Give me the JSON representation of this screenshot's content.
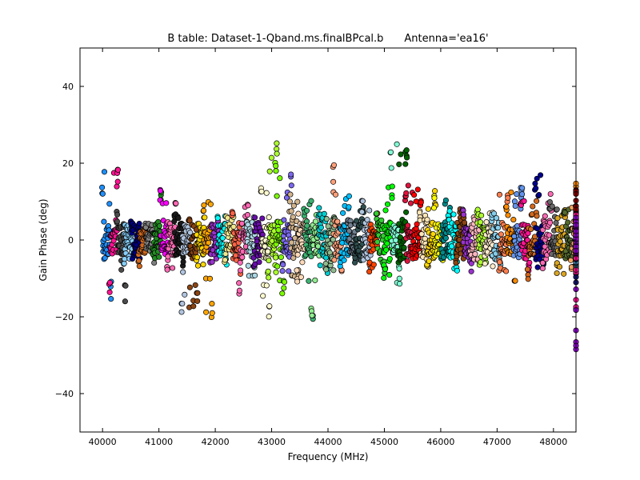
{
  "chart_data": {
    "type": "scatter",
    "title": "B table: Dataset-1-Qband.ms.finalBPcal.b",
    "subtitle": "Antenna='ea16'",
    "xlabel": "Frequency (MHz)",
    "ylabel": "Gain Phase (deg)",
    "xlim": [
      39600,
      48400
    ],
    "ylim": [
      -50,
      50
    ],
    "xticks": [
      40000,
      41000,
      42000,
      43000,
      44000,
      45000,
      46000,
      47000,
      48000
    ],
    "yticks": [
      -40,
      -20,
      0,
      20,
      40
    ],
    "ytick_labels": [
      "−40",
      "−20",
      "0",
      "20",
      "40"
    ],
    "grid": false,
    "legend": "none",
    "marker": "circle",
    "series_start": 40000,
    "series_step": 128,
    "baseline_amplitude": 4.5,
    "spectral_windows": [
      {
        "color": "#1e90ff",
        "ymin": -15.5,
        "ymax": 19
      },
      {
        "color": "#ff1493",
        "ymin": -14,
        "ymax": 19
      },
      {
        "color": "#4b4b4b",
        "ymin": -16,
        "ymax": 8
      },
      {
        "color": "#87cefa",
        "ymin": -7,
        "ymax": 4
      },
      {
        "color": "#000080",
        "ymin": -5,
        "ymax": 5
      },
      {
        "color": "#d2691e",
        "ymin": -7,
        "ymax": 5
      },
      {
        "color": "#808080",
        "ymin": -6,
        "ymax": 5
      },
      {
        "color": "#228b22",
        "ymin": -6,
        "ymax": 13
      },
      {
        "color": "#ff00ff",
        "ymin": -5,
        "ymax": 13.5
      },
      {
        "color": "#ff69b4",
        "ymin": -8,
        "ymax": 11
      },
      {
        "color": "#1a1a1a",
        "ymin": -7,
        "ymax": 7
      },
      {
        "color": "#b0c4de",
        "ymin": -20.5,
        "ymax": 4
      },
      {
        "color": "#8b4513",
        "ymin": -18,
        "ymax": 6
      },
      {
        "color": "#ffd700",
        "ymin": -8,
        "ymax": 6
      },
      {
        "color": "#ffa500",
        "ymin": -21,
        "ymax": 10.5
      },
      {
        "color": "#9932cc",
        "ymin": -6,
        "ymax": 5
      },
      {
        "color": "#00ffff",
        "ymin": -7,
        "ymax": 7
      },
      {
        "color": "#f0e68c",
        "ymin": -9,
        "ymax": 8
      },
      {
        "color": "#ff6347",
        "ymin": -9,
        "ymax": 9
      },
      {
        "color": "#ff69b4",
        "ymin": -14,
        "ymax": 9.5
      },
      {
        "color": "#add8e6",
        "ymin": -10,
        "ymax": 6
      },
      {
        "color": "#6a0dad",
        "ymin": -8,
        "ymax": 6
      },
      {
        "color": "#fffacd",
        "ymin": -20.5,
        "ymax": 14
      },
      {
        "color": "#adff2f",
        "ymin": -12,
        "ymax": 25.5
      },
      {
        "color": "#7cfc00",
        "ymin": -14,
        "ymax": 22
      },
      {
        "color": "#7b68ee",
        "ymin": -9,
        "ymax": 18
      },
      {
        "color": "#d2b48c",
        "ymin": -12,
        "ymax": 12
      },
      {
        "color": "#ffdab9",
        "ymin": -11,
        "ymax": 8
      },
      {
        "color": "#3cb371",
        "ymin": -21,
        "ymax": 11
      },
      {
        "color": "#90ee90",
        "ymin": -20,
        "ymax": 7
      },
      {
        "color": "#00ced1",
        "ymin": -9,
        "ymax": 10
      },
      {
        "color": "#8fbc8f",
        "ymin": -9,
        "ymax": 8
      },
      {
        "color": "#ffa07a",
        "ymin": -9,
        "ymax": 20
      },
      {
        "color": "#00bfff",
        "ymin": -7,
        "ymax": 13
      },
      {
        "color": "#708090",
        "ymin": -6,
        "ymax": 7
      },
      {
        "color": "#2f4f4f",
        "ymin": -6,
        "ymax": 9
      },
      {
        "color": "#b0c4de",
        "ymin": -8,
        "ymax": 11
      },
      {
        "color": "#ff4500",
        "ymin": -9,
        "ymax": 7
      },
      {
        "color": "#32cd32",
        "ymin": -10,
        "ymax": 9
      },
      {
        "color": "#00ff00",
        "ymin": -10,
        "ymax": 15
      },
      {
        "color": "#7fffd4",
        "ymin": -12,
        "ymax": 26
      },
      {
        "color": "#006400",
        "ymin": -6,
        "ymax": 24
      },
      {
        "color": "#dc143c",
        "ymin": -6,
        "ymax": 15
      },
      {
        "color": "#ff0000",
        "ymin": -6,
        "ymax": 14
      },
      {
        "color": "#ffe4b5",
        "ymin": -7,
        "ymax": 8
      },
      {
        "color": "#ffd700",
        "ymin": -7,
        "ymax": 13
      },
      {
        "color": "#ffff00",
        "ymin": -6,
        "ymax": 12
      },
      {
        "color": "#008b8b",
        "ymin": -5,
        "ymax": 11
      },
      {
        "color": "#00ffff",
        "ymin": -8,
        "ymax": 9
      },
      {
        "color": "#8b4513",
        "ymin": -7,
        "ymax": 9
      },
      {
        "color": "#9932cc",
        "ymin": -9,
        "ymax": 8
      },
      {
        "color": "#ffb6c1",
        "ymin": -6,
        "ymax": 7
      },
      {
        "color": "#adff2f",
        "ymin": -7,
        "ymax": 8
      },
      {
        "color": "#ffebcd",
        "ymin": -7,
        "ymax": 8
      },
      {
        "color": "#87ceeb",
        "ymin": -8,
        "ymax": 7
      },
      {
        "color": "#ff7f50",
        "ymin": -9,
        "ymax": 14
      },
      {
        "color": "#ff8c00",
        "ymin": -13,
        "ymax": 13
      },
      {
        "color": "#6495ed",
        "ymin": -6,
        "ymax": 14
      },
      {
        "color": "#ff1493",
        "ymin": -10,
        "ymax": 12
      },
      {
        "color": "#d2691e",
        "ymin": -11,
        "ymax": 11
      },
      {
        "color": "#00008b",
        "ymin": -8,
        "ymax": 18
      },
      {
        "color": "#ff69b4",
        "ymin": -9,
        "ymax": 12
      },
      {
        "color": "#696969",
        "ymin": -8,
        "ymax": 10
      },
      {
        "color": "#daa520",
        "ymin": -9,
        "ymax": 8
      },
      {
        "color": "#556b2f",
        "ymin": -7,
        "ymax": 8
      },
      {
        "color": "#f4a460",
        "ymin": -8,
        "ymax": 10
      },
      {
        "color": "#bdb76b",
        "ymin": -7,
        "ymax": 8
      },
      {
        "color": "#ff8c00",
        "ymin": -8,
        "ymax": 15
      },
      {
        "color": "#dda0dd",
        "ymin": -7,
        "ymax": 8
      },
      {
        "color": "#f0e68c",
        "ymin": -8,
        "ymax": 9
      },
      {
        "color": "#8b0000",
        "ymin": -7,
        "ymax": 14
      },
      {
        "color": "#483d8b",
        "ymin": -8,
        "ymax": 6
      },
      {
        "color": "#c71585",
        "ymin": -8,
        "ymax": 6
      },
      {
        "color": "#a0522d",
        "ymin": -9,
        "ymax": 7
      },
      {
        "color": "#2e8b57",
        "ymin": -8,
        "ymax": 6
      },
      {
        "color": "#4682b4",
        "ymin": -8,
        "ymax": 7
      },
      {
        "color": "#191970",
        "ymin": -12,
        "ymax": 7
      },
      {
        "color": "#ff1493",
        "ymin": -18,
        "ymax": 7
      },
      {
        "color": "#9400d3",
        "ymin": -31,
        "ymax": 6
      }
    ]
  }
}
